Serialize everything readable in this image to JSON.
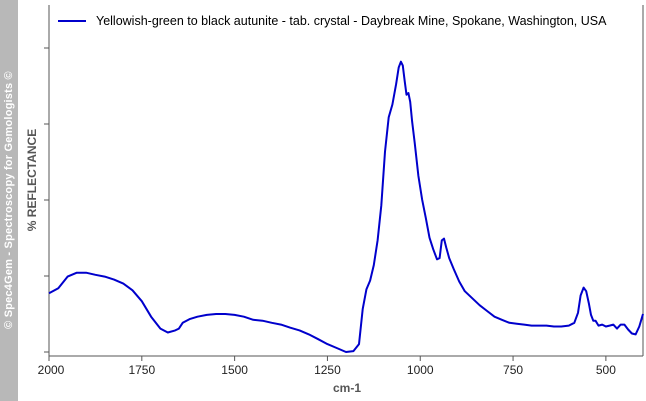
{
  "watermark": "© Spec4Gem - Spectroscopy for Gemologists ©",
  "chart_data": {
    "type": "line",
    "title": "",
    "xlabel": "cm-1",
    "ylabel": "%  REFLECTANCE",
    "xlim": [
      2000,
      400
    ],
    "x_reversed": true,
    "ylim": [
      0,
      100
    ],
    "y_ticks_labeled": false,
    "grid": false,
    "legend_position": "top",
    "x_ticks": [
      2000,
      1750,
      1500,
      1250,
      1000,
      750,
      500
    ],
    "x_tick_labels": [
      "2000",
      "1750",
      "1500",
      "1250",
      "1000",
      "750",
      "500"
    ],
    "y_ticks": [
      0,
      25,
      50,
      75,
      100
    ],
    "series": [
      {
        "name": "Yellowish-green to black autunite - tab. crystal - Daybreak Mine, Spokane, Washington, USA",
        "color": "#0000cc",
        "x": [
          2000,
          1975,
          1950,
          1925,
          1900,
          1875,
          1850,
          1825,
          1800,
          1775,
          1750,
          1725,
          1700,
          1680,
          1660,
          1650,
          1640,
          1620,
          1600,
          1575,
          1550,
          1525,
          1500,
          1475,
          1450,
          1425,
          1400,
          1375,
          1350,
          1325,
          1300,
          1275,
          1250,
          1225,
          1200,
          1180,
          1165,
          1155,
          1145,
          1135,
          1125,
          1115,
          1105,
          1095,
          1085,
          1075,
          1065,
          1058,
          1052,
          1047,
          1042,
          1037,
          1032,
          1027,
          1022,
          1015,
          1005,
          995,
          985,
          975,
          965,
          955,
          948,
          942,
          936,
          930,
          922,
          910,
          895,
          880,
          860,
          840,
          820,
          800,
          780,
          760,
          740,
          720,
          700,
          680,
          660,
          640,
          620,
          600,
          585,
          575,
          568,
          560,
          553,
          546,
          540,
          534,
          528,
          520,
          510,
          500,
          490,
          480,
          470,
          460,
          450,
          440,
          430,
          420,
          410,
          400
        ],
        "y": [
          19.3,
          21,
          24.8,
          26.1,
          26.1,
          25.4,
          24.8,
          23.8,
          22.5,
          20.3,
          16.7,
          11.6,
          7.7,
          6.4,
          7.1,
          7.7,
          9.6,
          10.9,
          11.6,
          12.2,
          12.5,
          12.5,
          12.2,
          11.6,
          10.6,
          10.3,
          9.6,
          9,
          8,
          7.1,
          5.8,
          4.2,
          2.6,
          1.3,
          0,
          0.3,
          2.6,
          14.1,
          20.6,
          23.5,
          28.6,
          36.7,
          48.2,
          65.9,
          77.2,
          81.4,
          88.1,
          93.6,
          95.5,
          94.2,
          89.1,
          84.6,
          85.2,
          82.3,
          75.9,
          68.8,
          57.9,
          50.2,
          44.1,
          37.6,
          33.8,
          30.5,
          30.9,
          36.7,
          37.3,
          34.4,
          30.9,
          27.3,
          23.2,
          20,
          17.7,
          15.4,
          13.5,
          11.6,
          10.6,
          9.6,
          9.3,
          9,
          8.7,
          8.7,
          8.7,
          8.4,
          8.4,
          8.7,
          9.6,
          12.9,
          18.6,
          21.2,
          20,
          16.1,
          12.2,
          10.3,
          10.3,
          8.7,
          9,
          8.4,
          8.7,
          9,
          7.7,
          9,
          9,
          7.4,
          6.1,
          5.8,
          8.4,
          12.5
        ]
      }
    ]
  }
}
